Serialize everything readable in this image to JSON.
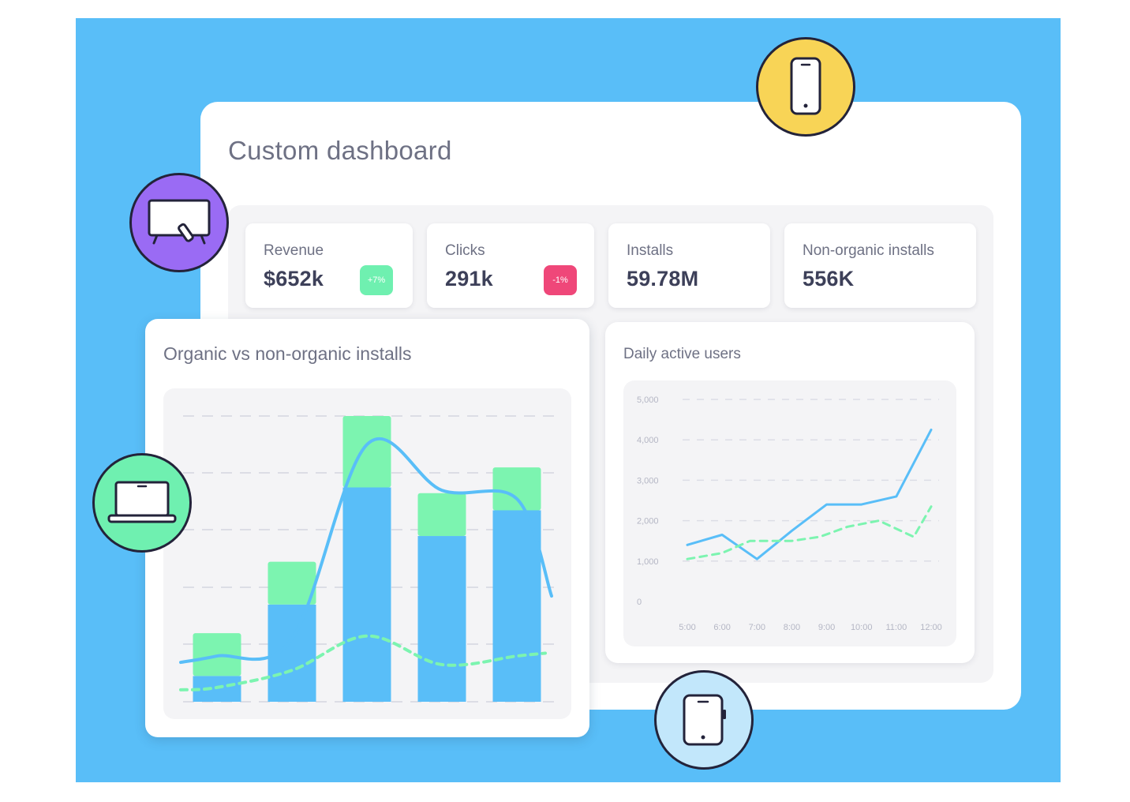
{
  "dashboard": {
    "title": "Custom dashboard"
  },
  "kpis": [
    {
      "label": "Revenue",
      "value": "$652k",
      "badge": "+7%",
      "trend": "up"
    },
    {
      "label": "Clicks",
      "value": "291k",
      "badge": "-1%",
      "trend": "down"
    },
    {
      "label": "Installs",
      "value": "59.78M"
    },
    {
      "label": "Non-organic installs",
      "value": "556K"
    }
  ],
  "colors": {
    "background": "#59bef8",
    "blue": "#59bef8",
    "green": "#7cf4b0",
    "badge_up": "#6ff0b0",
    "badge_down": "#ef4779",
    "device_purple": "#9a6bf4",
    "device_yellow": "#f8d456",
    "device_green": "#6ff0b0",
    "device_light_blue": "#c2e7fb"
  },
  "devices": [
    {
      "name": "tv-icon",
      "color": "#9a6bf4"
    },
    {
      "name": "smartphone-icon",
      "color": "#f8d456"
    },
    {
      "name": "laptop-icon",
      "color": "#6ff0b0"
    },
    {
      "name": "tablet-icon",
      "color": "#c2e7fb"
    }
  ],
  "organic_chart": {
    "title": "Organic vs non-organic installs"
  },
  "dau_chart": {
    "title": "Daily active users"
  },
  "chart_data": [
    {
      "type": "bar",
      "title": "Organic vs non-organic installs",
      "stacked": true,
      "categories": [
        "",
        "",
        "",
        "",
        ""
      ],
      "series": [
        {
          "color": "#59bef8",
          "values": [
            0.9,
            3.4,
            7.5,
            5.8,
            6.7
          ]
        },
        {
          "color": "#7cf4b0",
          "values": [
            1.5,
            1.5,
            2.5,
            1.5,
            1.5
          ]
        }
      ],
      "lines": [
        {
          "style": "solid",
          "color": "#59bef8",
          "values": [
            1.6,
            2.2,
            9.0,
            7.4,
            7.1
          ]
        },
        {
          "style": "dashed",
          "color": "#7cf4b0",
          "values": [
            0.5,
            1.1,
            2.3,
            1.3,
            1.6
          ]
        }
      ],
      "ylim": [
        0,
        10
      ],
      "grid": true
    },
    {
      "type": "line",
      "title": "Daily active users",
      "x": [
        "5:00",
        "6:00",
        "7:00",
        "8:00",
        "9:00",
        "10:00",
        "11:00",
        "12:00"
      ],
      "yticks": [
        "0",
        "1,000",
        "2,000",
        "3,000",
        "4,000",
        "5,000"
      ],
      "ylim": [
        0,
        5000
      ],
      "grid": true,
      "series": [
        {
          "style": "solid",
          "color": "#59bef8",
          "x": [
            0,
            1,
            2,
            3,
            4,
            5,
            6,
            7
          ],
          "values": [
            1400,
            1650,
            1050,
            1750,
            2400,
            2400,
            2600,
            4250
          ]
        },
        {
          "style": "dashed",
          "color": "#7cf4b0",
          "x": [
            0,
            1,
            1.8,
            2.3,
            3,
            3.8,
            4.6,
            5.5,
            6.5,
            7
          ],
          "values": [
            1050,
            1200,
            1500,
            1500,
            1500,
            1600,
            1850,
            2000,
            1600,
            2350
          ]
        }
      ]
    }
  ]
}
